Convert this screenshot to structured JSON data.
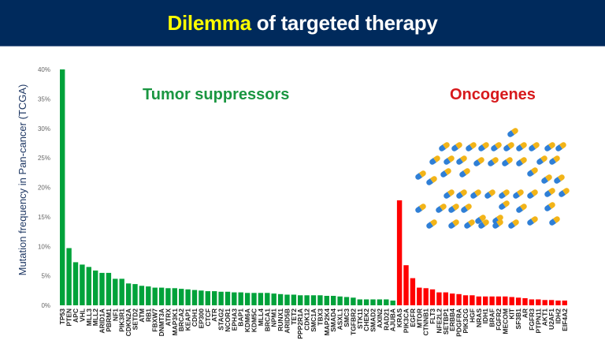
{
  "header": {
    "title_highlight": "Dilemma",
    "title_rest": " of targeted therapy",
    "background_color": "#002a5c",
    "highlight_color": "#ffff00"
  },
  "chart_data": {
    "type": "bar",
    "title": "Dilemma of targeted therapy",
    "xlabel": "",
    "ylabel": "Mutation frequency in Pan-cancer (TCGA)",
    "ylim": [
      0,
      40
    ],
    "yticks": [
      "0%",
      "5%",
      "10%",
      "15%",
      "20%",
      "25%",
      "30%",
      "35%",
      "40%"
    ],
    "grid": false,
    "annotations": [
      {
        "text": "Tumor suppressors",
        "color": "#1a9641",
        "position": "top-left"
      },
      {
        "text": "Oncogenes",
        "color": "#d7191c",
        "position": "top-right"
      }
    ],
    "decoration": "capsule pill icons (blue/yellow) scattered over the oncogenes region",
    "series": [
      {
        "name": "Tumor suppressors",
        "color": "#00a23a",
        "categories": [
          "TP53",
          "PTEN",
          "APC",
          "VHL",
          "MLL3",
          "MLL2",
          "ARID1A",
          "PBRM1",
          "NF1",
          "PIK3R1",
          "CDKN2A",
          "SETD2",
          "ATM",
          "RB1",
          "FBXW7",
          "DNMT3A",
          "ATRX",
          "MAP3K1",
          "BRCA2",
          "KEAP1",
          "CDH1",
          "EP300",
          "CTCF",
          "ATR",
          "STAG2",
          "NCOR1",
          "EPHA3",
          "BAP1",
          "KDM6A",
          "KDM5C",
          "MLL4",
          "BRCA1",
          "NPM1",
          "RUNX1",
          "ARID5B",
          "TET2",
          "PPP2R1A",
          "CDK12",
          "SMC1A",
          "TBX3",
          "MAP2K4",
          "SMAD4",
          "ASXL1",
          "SMC3",
          "TGFBR2",
          "STK11",
          "CHEK2",
          "SMAD2",
          "AXIN2",
          "RAD21",
          "AJUBA"
        ],
        "values": [
          40.0,
          9.7,
          7.3,
          6.9,
          6.5,
          5.9,
          5.5,
          5.5,
          4.5,
          4.5,
          3.7,
          3.6,
          3.3,
          3.2,
          3.0,
          3.0,
          2.9,
          2.9,
          2.8,
          2.7,
          2.6,
          2.5,
          2.4,
          2.4,
          2.3,
          2.3,
          2.2,
          2.2,
          2.1,
          2.1,
          2.1,
          2.1,
          2.0,
          1.9,
          1.8,
          1.8,
          1.7,
          1.7,
          1.7,
          1.7,
          1.6,
          1.6,
          1.5,
          1.4,
          1.3,
          1.0,
          1.0,
          1.0,
          1.0,
          1.0,
          0.8
        ]
      },
      {
        "name": "Oncogenes",
        "color": "#ff0000",
        "categories": [
          "KRAS",
          "PIK3CA",
          "EGFR",
          "MTOR",
          "CTNNB1",
          "FLT3",
          "NFE2L2",
          "SETBP1",
          "ERBB4",
          "PDGFRA",
          "PIK3CG",
          "HGF",
          "NRAS",
          "IDH1",
          "BRAF",
          "FGFR2",
          "MECOM",
          "KIT",
          "SF3B1",
          "AR",
          "FGFR3",
          "PTPN11",
          "AKT1",
          "U2AF1",
          "IDH2",
          "EIF4A2"
        ],
        "values": [
          17.8,
          6.8,
          4.6,
          3.0,
          2.9,
          2.7,
          2.2,
          2.2,
          2.0,
          1.9,
          1.7,
          1.7,
          1.5,
          1.5,
          1.5,
          1.5,
          1.5,
          1.4,
          1.3,
          1.2,
          1.0,
          1.0,
          0.9,
          0.9,
          0.8,
          0.8
        ]
      }
    ]
  }
}
